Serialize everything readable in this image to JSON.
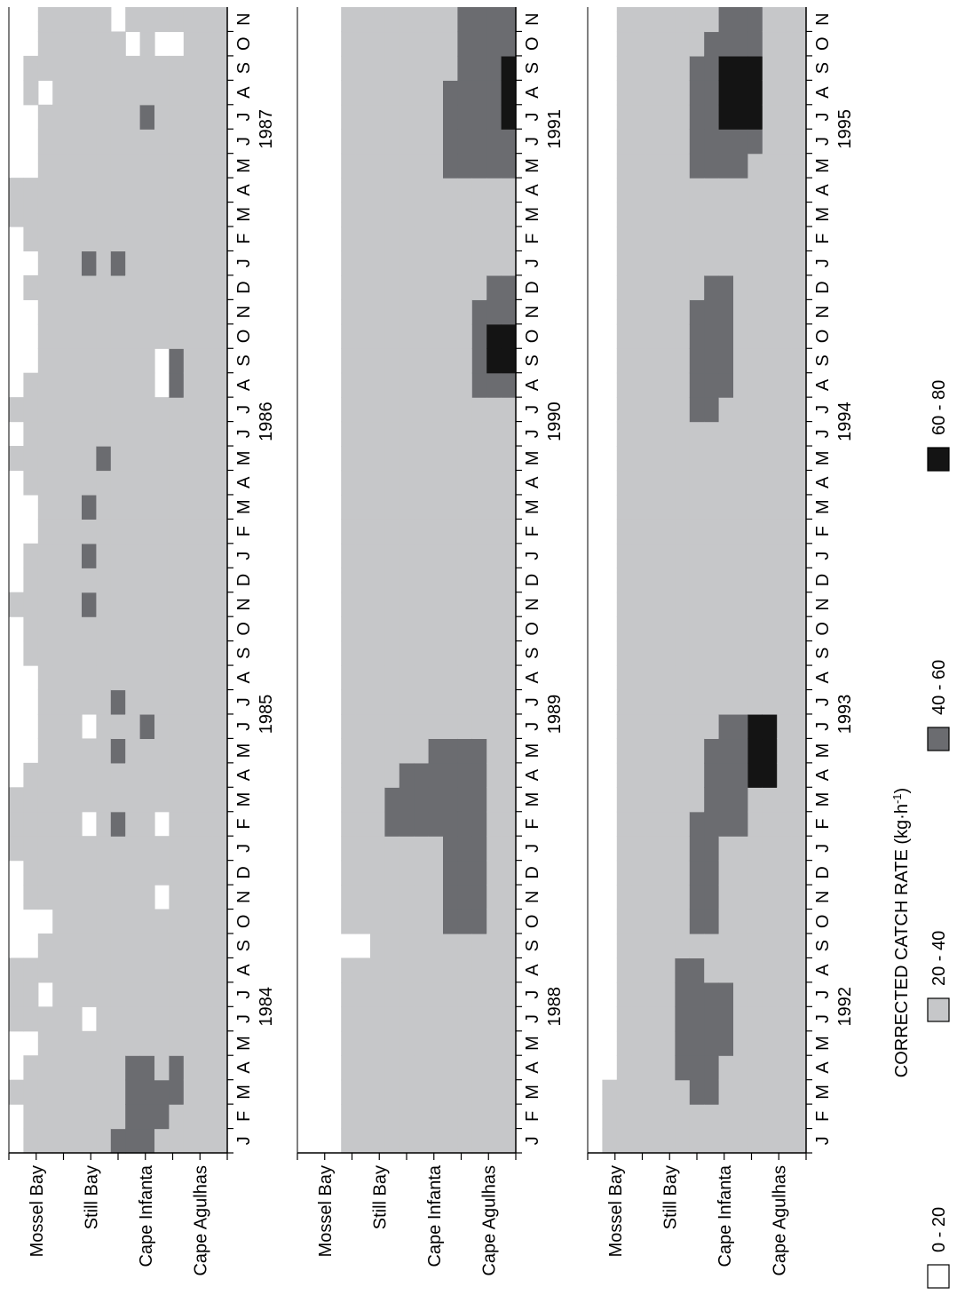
{
  "chart_data": {
    "type": "heatmap",
    "title": "",
    "value_label": "CORRECTED CATCH RATE (kg·h",
    "value_label_sup": "-1",
    "value_label_end": ")",
    "legend": [
      {
        "label": "0 - 20",
        "color": "#ffffff"
      },
      {
        "label": "20 - 40",
        "color": "#c6c7c9"
      },
      {
        "label": "40 - 60",
        "color": "#6b6c70"
      },
      {
        "label": "60 - 80",
        "color": "#141414"
      }
    ],
    "locations": [
      "Mossel Bay",
      "Still Bay",
      "Cape Infanta",
      "Cape Agulhas"
    ],
    "month_letters": [
      "J",
      "F",
      "M",
      "A",
      "M",
      "J",
      "J",
      "A",
      "S",
      "O",
      "N",
      "D"
    ],
    "periods": [
      {
        "years": [
          "1984",
          "1985",
          "1986",
          "1987"
        ],
        "months_shown": 47,
        "grid": [
          "00100111000011100000001000001010000000110000000",
          "11110111001111110000111110011111000101110001100",
          "11111101101111111111111111111111111111111110111",
          "11111111111111111111111111111111111111111111111",
          "11111111111111111111111111111111111111111111111",
          "11111011111110111011112121211111111121111111111",
          "11111111111111111111111111112111111111111111111",
          "21111111111112112121111111111111111121111111110",
          "22221111111111111111111111111111111111111111101",
          "22221111111111111211111111111111111111111121111",
          "12211111110110111111111111111110011111111111101",
          "11221111111111111111111111111112211111111111101",
          "11111111111111111111111111111111111111111111111",
          "11111111111111111111111111111111111111111111111",
          "11111111111111111111111111111111111111111111111"
        ]
      },
      {
        "years": [
          "1988",
          "1989",
          "1990",
          "1991"
        ],
        "months_shown": 47,
        "grid": [
          "00000000000000000000000000000000000000000000000",
          "00000000000000000000000000000000000000000000000",
          "00000000000000000000000000000000000000000000000",
          "11111111011111111111111111111111111111111111111",
          "11111111011111111111111111111111111111111111111",
          "11111111111111111111111111111111111111111111111",
          "11111111111112211111111111111111111111111111111",
          "11111111111112221111111111111111111111111111111",
          "11111111111112221111111111111111111111111111111",
          "11111111111112222111111111111111111111111111111",
          "11111111122222222111111111111111111111112222111",
          "11111111122222222111111111111111111111112222222",
          "11111111122222222111111111111112222111112222222",
          "11111111111111111111111111111112332211112222222",
          "11111111111111111111111111111112332211112233322"
        ]
      },
      {
        "years": [
          "1992",
          "1993",
          "1994",
          "1995"
        ],
        "months_shown": 47,
        "grid": [
          "00000000000000000000000000000000000000000000000",
          "11100000000000000000000000000000000000000000000",
          "11111111111111111111111111111111111111111111111",
          "11111111111111111111111111111111111111111111111",
          "11111111111111111111111111111111111111111111111",
          "11111111111111111111111111111111111111111111111",
          "11122222111111111111111111111111111111111111111",
          "11222222122222111111111111111122222111112222211",
          "11222221122222222111111111111122222211112222221",
          "11112221111112222211111111111112222211112233322",
          "11111111111112222211111111111111111111112233322",
          "11111111111111133311111111111111111111111233322",
          "11111111111111133311111111111111111111111111111",
          "11111111111111111111111111111111111111111111111",
          "11111111111111111111111111111111111111111111111"
        ]
      }
    ]
  },
  "colors": {
    "c0": "#ffffff",
    "c1": "#c6c7c9",
    "c2": "#6b6c70",
    "c3": "#141414",
    "axis": "#000000"
  }
}
